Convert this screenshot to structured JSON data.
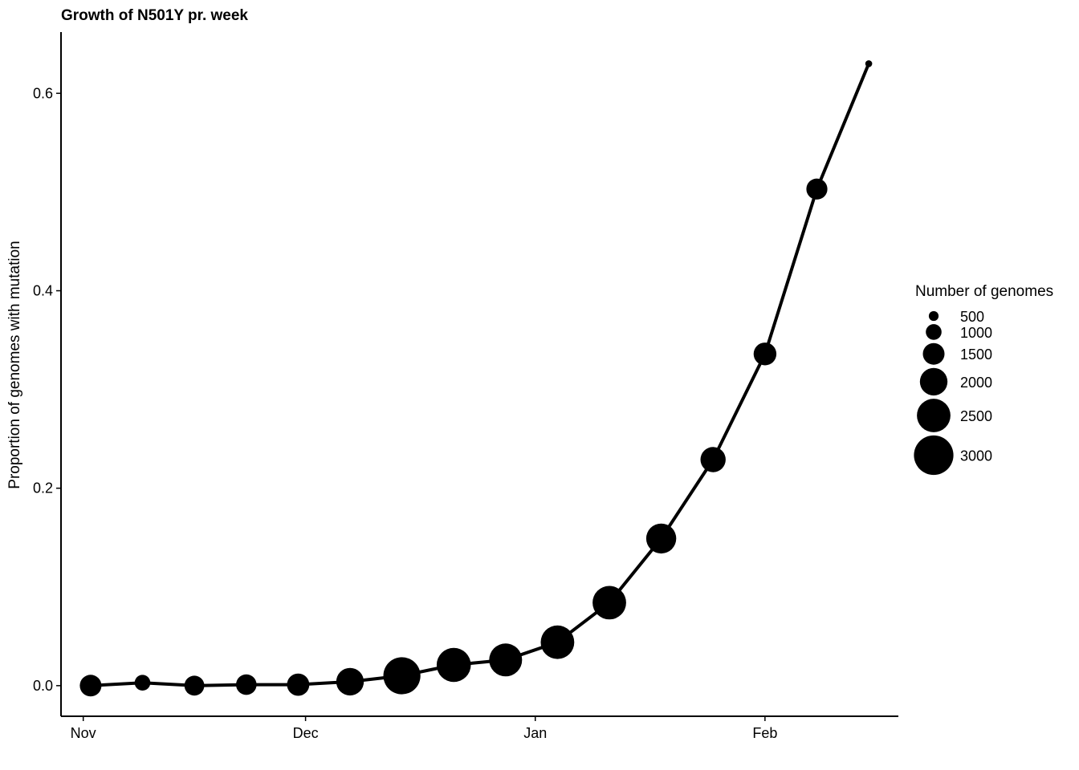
{
  "chart_data": {
    "type": "line",
    "title": "Growth of N501Y pr. week",
    "xlabel": "",
    "ylabel": "Proportion of genomes with mutation",
    "x_ticks": [
      "Nov",
      "Dec",
      "Jan",
      "Feb"
    ],
    "x_tick_dates": [
      "2020-11-01",
      "2020-12-01",
      "2021-01-01",
      "2021-02-01"
    ],
    "y_ticks": [
      0.0,
      0.2,
      0.4,
      0.6
    ],
    "y_tick_labels": [
      "0.0",
      "0.2",
      "0.4",
      "0.6"
    ],
    "xlim": [
      "2020-10-29",
      "2021-02-19"
    ],
    "ylim": [
      -0.031,
      0.662
    ],
    "grid": false,
    "line_color": "#000000",
    "point_color": "#000000",
    "points": [
      {
        "x": "2020-11-02",
        "y": 0.0,
        "size": 1500
      },
      {
        "x": "2020-11-09",
        "y": 0.003,
        "size": 1000
      },
      {
        "x": "2020-11-16",
        "y": 0.0,
        "size": 1350
      },
      {
        "x": "2020-11-23",
        "y": 0.001,
        "size": 1400
      },
      {
        "x": "2020-11-30",
        "y": 0.001,
        "size": 1550
      },
      {
        "x": "2020-12-07",
        "y": 0.004,
        "size": 2000
      },
      {
        "x": "2020-12-14",
        "y": 0.01,
        "size": 2800
      },
      {
        "x": "2020-12-21",
        "y": 0.021,
        "size": 2550
      },
      {
        "x": "2020-12-28",
        "y": 0.026,
        "size": 2450
      },
      {
        "x": "2021-01-04",
        "y": 0.044,
        "size": 2500
      },
      {
        "x": "2021-01-11",
        "y": 0.084,
        "size": 2500
      },
      {
        "x": "2021-01-18",
        "y": 0.149,
        "size": 2200
      },
      {
        "x": "2021-01-25",
        "y": 0.229,
        "size": 1800
      },
      {
        "x": "2021-02-01",
        "y": 0.336,
        "size": 1600
      },
      {
        "x": "2021-02-08",
        "y": 0.503,
        "size": 1450
      },
      {
        "x": "2021-02-15",
        "y": 0.63,
        "size": 250
      }
    ],
    "legend": {
      "title": "Number of genomes",
      "placement": "right",
      "entries": [
        {
          "label": "500",
          "size": 500
        },
        {
          "label": "1000",
          "size": 1000
        },
        {
          "label": "1500",
          "size": 1500
        },
        {
          "label": "2000",
          "size": 2000
        },
        {
          "label": "2500",
          "size": 2500
        },
        {
          "label": "3000",
          "size": 3000
        }
      ]
    }
  }
}
